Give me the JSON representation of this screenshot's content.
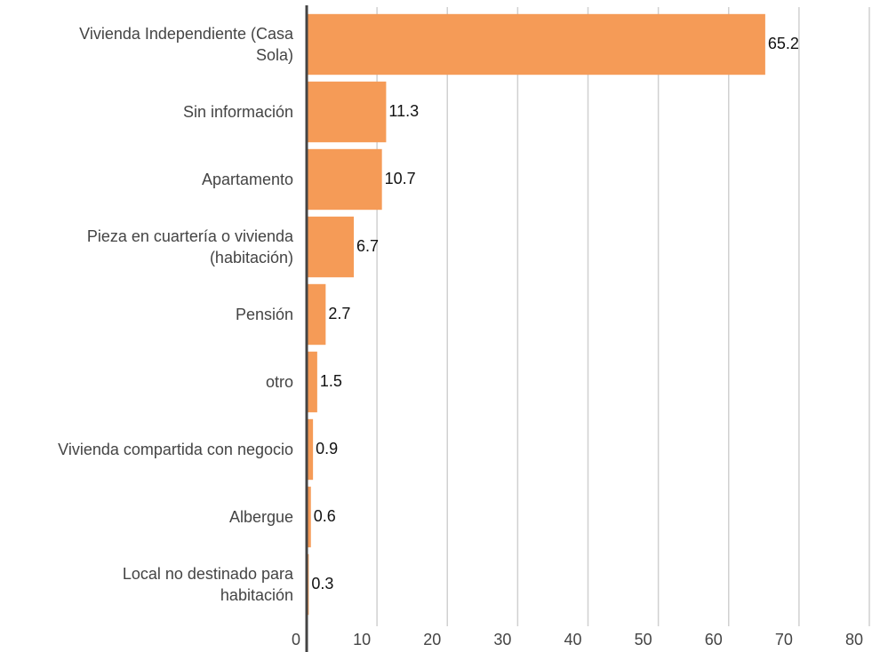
{
  "chart_data": {
    "type": "bar",
    "orientation": "horizontal",
    "categories": [
      "Vivienda Independiente (Casa\nSola)",
      "Sin información",
      "Apartamento",
      "Pieza en cuartería o vivienda\n(habitación)",
      "Pensión",
      "otro",
      "Vivienda compartida con negocio",
      "Albergue",
      "Local no destinado para\nhabitación"
    ],
    "values": [
      65.2,
      11.3,
      10.7,
      6.7,
      2.7,
      1.5,
      0.9,
      0.6,
      0.3
    ],
    "color": "#f59b57",
    "xlim": [
      0,
      80
    ],
    "xticks": [
      0,
      10,
      20,
      30,
      40,
      50,
      60,
      70,
      80
    ],
    "grid": true
  }
}
